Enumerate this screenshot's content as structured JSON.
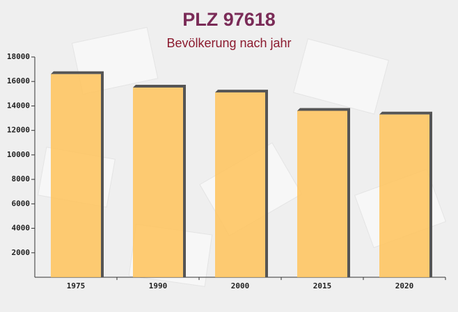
{
  "chart_data": {
    "type": "bar",
    "title": "PLZ 97618",
    "subtitle": "Bevölkerung nach jahr",
    "categories": [
      "1975",
      "1990",
      "2000",
      "2015",
      "2020"
    ],
    "values": [
      16600,
      15500,
      15100,
      13600,
      13300
    ],
    "color": "#ffc35a",
    "ylim": [
      0,
      18000
    ],
    "yticks": [
      2000,
      4000,
      6000,
      8000,
      10000,
      12000,
      14000,
      16000,
      18000
    ]
  }
}
